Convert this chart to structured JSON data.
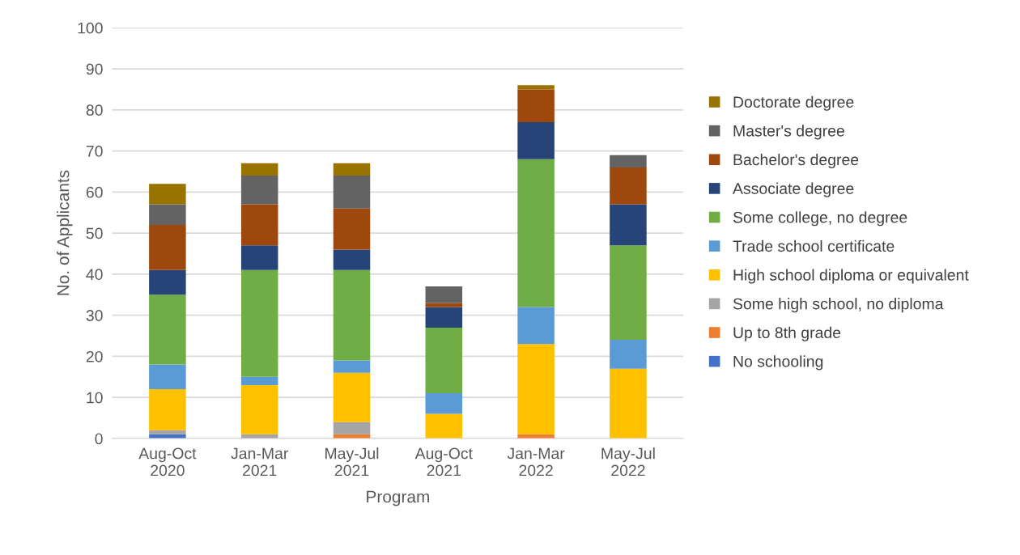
{
  "chart_data": {
    "type": "bar",
    "stacked": true,
    "xlabel": "Program",
    "ylabel": "No. of Applicants",
    "categories": [
      "Aug-Oct\n2020",
      "Jan-Mar\n2021",
      "May-Jul\n2021",
      "Aug-Oct\n2021",
      "Jan-Mar\n2022",
      "May-Jul\n2022"
    ],
    "ylim": [
      0,
      100
    ],
    "yticks": [
      0,
      10,
      20,
      30,
      40,
      50,
      60,
      70,
      80,
      90,
      100
    ],
    "grid": "y",
    "legend": "right",
    "series": [
      {
        "name": "No schooling",
        "color": "#4472c4",
        "values": [
          1,
          0,
          0,
          0,
          0,
          0
        ]
      },
      {
        "name": "Up to 8th grade",
        "color": "#ed7d31",
        "values": [
          0,
          0,
          1,
          0,
          1,
          0
        ]
      },
      {
        "name": "Some high school, no diploma",
        "color": "#a5a5a5",
        "values": [
          1,
          1,
          3,
          0,
          0,
          0
        ]
      },
      {
        "name": "High school diploma or equivalent",
        "color": "#ffc000",
        "values": [
          10,
          12,
          12,
          6,
          22,
          17
        ]
      },
      {
        "name": "Trade school certificate",
        "color": "#5b9bd5",
        "values": [
          6,
          2,
          3,
          5,
          9,
          7
        ]
      },
      {
        "name": "Some college, no degree",
        "color": "#70ad47",
        "values": [
          17,
          26,
          22,
          16,
          36,
          23
        ]
      },
      {
        "name": "Associate degree",
        "color": "#264478",
        "values": [
          6,
          6,
          5,
          5,
          9,
          10
        ]
      },
      {
        "name": "Bachelor's degree",
        "color": "#9e480e",
        "values": [
          11,
          10,
          10,
          1,
          8,
          9
        ]
      },
      {
        "name": "Master's degree",
        "color": "#636363",
        "values": [
          5,
          7,
          8,
          4,
          0,
          3
        ]
      },
      {
        "name": "Doctorate degree",
        "color": "#997300",
        "values": [
          5,
          3,
          3,
          0,
          1,
          0
        ]
      }
    ]
  }
}
